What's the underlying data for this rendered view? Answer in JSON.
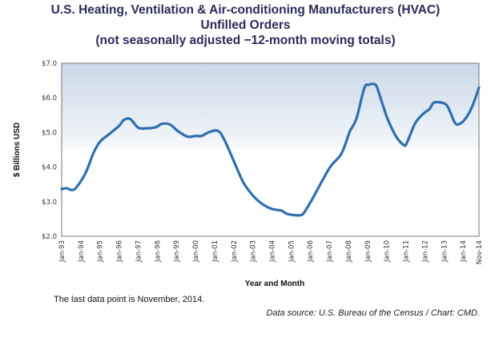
{
  "chart_data": {
    "type": "line",
    "title": [
      "U.S. Heating, Ventilation & Air-conditioning Manufacturers (HVAC)",
      "Unfilled Orders",
      "(not seasonally adjusted −12-month moving totals)"
    ],
    "xlabel": "Year and Month",
    "ylabel": "$ Billions USD",
    "ylim": [
      2.0,
      7.0
    ],
    "yticks": [
      "$2.0",
      "$3.0",
      "$4.0",
      "$5.0",
      "$6.0",
      "$7.0"
    ],
    "xlim": [
      "1993-01",
      "2014-11"
    ],
    "xticks": [
      "Jan-93",
      "Jan-94",
      "Jan-95",
      "Jan-96",
      "Jan-97",
      "Jan-98",
      "Jan-99",
      "Jan-00",
      "Jan-01",
      "Jan-02",
      "Jan-03",
      "Jan-04",
      "Jan-05",
      "Jan-06",
      "Jan-07",
      "Jan-08",
      "Jan-09",
      "Jan-10",
      "Jan-11",
      "Jan-12",
      "Jan-13",
      "Jan-14",
      "Nov-14"
    ],
    "grid": false,
    "line_color": "#2f6fb0",
    "series": [
      {
        "points": [
          [
            "1993-01",
            3.36
          ],
          [
            "1993-04",
            3.39
          ],
          [
            "1993-07",
            3.34
          ],
          [
            "1993-10",
            3.4
          ],
          [
            "1994-04",
            3.83
          ],
          [
            "1994-09",
            4.41
          ],
          [
            "1995-01",
            4.73
          ],
          [
            "1995-07",
            4.96
          ],
          [
            "1996-01",
            5.19
          ],
          [
            "1996-04",
            5.36
          ],
          [
            "1996-08",
            5.39
          ],
          [
            "1997-01",
            5.14
          ],
          [
            "1997-06",
            5.12
          ],
          [
            "1997-12",
            5.15
          ],
          [
            "1998-04",
            5.25
          ],
          [
            "1998-09",
            5.23
          ],
          [
            "1999-02",
            5.04
          ],
          [
            "1999-08",
            4.88
          ],
          [
            "2000-01",
            4.9
          ],
          [
            "2000-05",
            4.9
          ],
          [
            "2000-09",
            5.0
          ],
          [
            "2001-03",
            5.05
          ],
          [
            "2001-07",
            4.8
          ],
          [
            "2002-01",
            4.18
          ],
          [
            "2002-07",
            3.56
          ],
          [
            "2003-01",
            3.18
          ],
          [
            "2003-07",
            2.93
          ],
          [
            "2004-01",
            2.79
          ],
          [
            "2004-07",
            2.74
          ],
          [
            "2004-11",
            2.64
          ],
          [
            "2005-07",
            2.61
          ],
          [
            "2005-10",
            2.74
          ],
          [
            "2006-03",
            3.13
          ],
          [
            "2006-09",
            3.64
          ],
          [
            "2007-02",
            4.03
          ],
          [
            "2007-08",
            4.34
          ],
          [
            "2007-11",
            4.65
          ],
          [
            "2008-02",
            5.04
          ],
          [
            "2008-06",
            5.39
          ],
          [
            "2008-11",
            6.28
          ],
          [
            "2009-02",
            6.38
          ],
          [
            "2009-05",
            6.4
          ],
          [
            "2009-07",
            6.3
          ],
          [
            "2009-11",
            5.74
          ],
          [
            "2010-02",
            5.35
          ],
          [
            "2010-07",
            4.88
          ],
          [
            "2010-12",
            4.63
          ],
          [
            "2011-02",
            4.73
          ],
          [
            "2011-07",
            5.27
          ],
          [
            "2011-12",
            5.54
          ],
          [
            "2012-04",
            5.68
          ],
          [
            "2012-07",
            5.87
          ],
          [
            "2013-02",
            5.82
          ],
          [
            "2013-05",
            5.58
          ],
          [
            "2013-08",
            5.27
          ],
          [
            "2013-11",
            5.25
          ],
          [
            "2014-03",
            5.43
          ],
          [
            "2014-07",
            5.78
          ],
          [
            "2014-11",
            6.3
          ]
        ]
      }
    ]
  },
  "notes": {
    "last_point": "The last data point is November, 2014.",
    "source": "Data source: U.S. Bureau of the Census / Chart: CMD."
  }
}
